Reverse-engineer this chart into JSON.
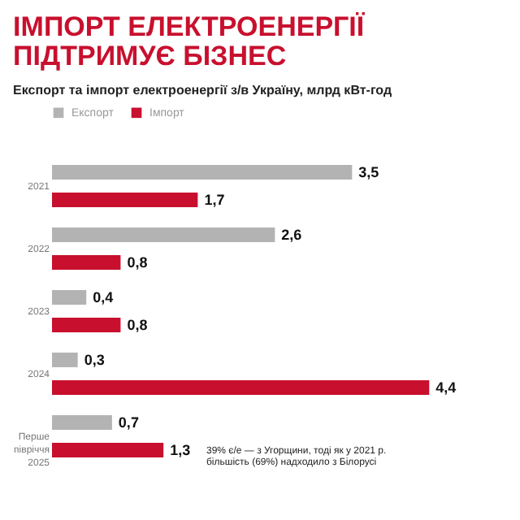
{
  "chart_data": {
    "type": "bar",
    "orientation": "horizontal",
    "title": "ІМПОРТ ЕЛЕКТРОЕНЕРГІЇ\nПІДТРИМУЄ БІЗНЕС",
    "subtitle": "Експорт та імпорт електроенергії з/в Україну, млрд кВт-год",
    "categories": [
      "2021",
      "2022",
      "2023",
      "2024",
      "Перше півріччя 2025"
    ],
    "series": [
      {
        "name": "Експорт",
        "color": "#b3b3b3",
        "values": [
          3.5,
          2.6,
          0.4,
          0.3,
          0.7
        ],
        "value_labels": [
          "3,5",
          "2,6",
          "0,4",
          "0,3",
          "0,7"
        ]
      },
      {
        "name": "Імпорт",
        "color": "#c8102e",
        "values": [
          1.7,
          0.8,
          0.8,
          4.4,
          1.3
        ],
        "value_labels": [
          "1,7",
          "0,8",
          "0,8",
          "4,4",
          "1,3"
        ]
      }
    ],
    "legend": "top left",
    "grid": false,
    "annotations": [
      "39% є/е — з Угорщини, тоді як у 2021 р. більшість (69%) надходило з Білорусі"
    ]
  }
}
